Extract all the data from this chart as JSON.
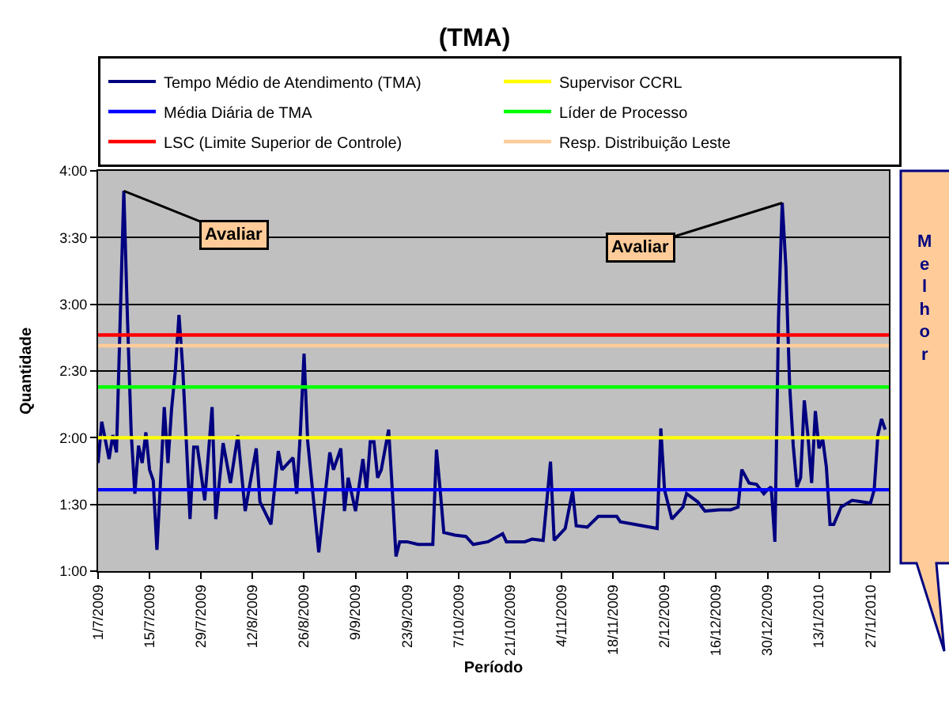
{
  "chart_data": {
    "type": "line",
    "title": "(TMA)",
    "xlabel": "Período",
    "ylabel": "Quantidade",
    "xlim": [
      "2009-07-01",
      "2010-02-01"
    ],
    "xticks": [
      {
        "value": "2009-07-01",
        "label": "1/7/2009"
      },
      {
        "value": "2009-07-15",
        "label": "15/7/2009"
      },
      {
        "value": "2009-07-29",
        "label": "29/7/2009"
      },
      {
        "value": "2009-08-12",
        "label": "12/8/2009"
      },
      {
        "value": "2009-08-26",
        "label": "26/8/2009"
      },
      {
        "value": "2009-09-09",
        "label": "9/9/2009"
      },
      {
        "value": "2009-09-23",
        "label": "23/9/2009"
      },
      {
        "value": "2009-10-07",
        "label": "7/10/2009"
      },
      {
        "value": "2009-10-21",
        "label": "21/10/2009"
      },
      {
        "value": "2009-11-04",
        "label": "4/11/2009"
      },
      {
        "value": "2009-11-18",
        "label": "18/11/2009"
      },
      {
        "value": "2009-12-02",
        "label": "2/12/2009"
      },
      {
        "value": "2009-12-16",
        "label": "16/12/2009"
      },
      {
        "value": "2009-12-30",
        "label": "30/12/2009"
      },
      {
        "value": "2010-01-13",
        "label": "13/1/2010"
      },
      {
        "value": "2010-01-27",
        "label": "27/1/2010"
      }
    ],
    "ylim": [
      1,
      4
    ],
    "yticks": [
      {
        "value": 1,
        "label": "1:00"
      },
      {
        "value": 1.5,
        "label": "1:30"
      },
      {
        "value": 2,
        "label": "2:00"
      },
      {
        "value": 2.5,
        "label": "2:30"
      },
      {
        "value": 3,
        "label": "3:00"
      },
      {
        "value": 3.5,
        "label": "3:30"
      },
      {
        "value": 4,
        "label": "4:00"
      }
    ],
    "grid": "y",
    "legend": "top",
    "series": [
      {
        "name": "Tempo Médio de Atendimento (TMA)",
        "color": "#000080",
        "x": [
          "2009-07-01",
          "2009-07-02",
          "2009-07-04",
          "2009-07-05",
          "2009-07-06",
          "2009-07-07",
          "2009-07-08",
          "2009-07-09",
          "2009-07-10",
          "2009-07-11",
          "2009-07-12",
          "2009-07-13",
          "2009-07-14",
          "2009-07-15",
          "2009-07-16",
          "2009-07-17",
          "2009-07-18",
          "2009-07-19",
          "2009-07-20",
          "2009-07-21",
          "2009-07-22",
          "2009-07-23",
          "2009-07-24",
          "2009-07-25",
          "2009-07-26",
          "2009-07-27",
          "2009-07-28",
          "2009-07-30",
          "2009-08-01",
          "2009-08-02",
          "2009-08-04",
          "2009-08-06",
          "2009-08-08",
          "2009-08-10",
          "2009-08-13",
          "2009-08-14",
          "2009-08-17",
          "2009-08-19",
          "2009-08-20",
          "2009-08-23",
          "2009-08-24",
          "2009-08-25",
          "2009-08-26",
          "2009-08-27",
          "2009-08-30",
          "2009-09-02",
          "2009-09-03",
          "2009-09-05",
          "2009-09-06",
          "2009-09-07",
          "2009-09-09",
          "2009-09-11",
          "2009-09-12",
          "2009-09-13",
          "2009-09-14",
          "2009-09-15",
          "2009-09-16",
          "2009-09-18",
          "2009-09-19",
          "2009-09-20",
          "2009-09-21",
          "2009-09-23",
          "2009-09-26",
          "2009-09-30",
          "2009-10-01",
          "2009-10-02",
          "2009-10-03",
          "2009-10-06",
          "2009-10-09",
          "2009-10-11",
          "2009-10-15",
          "2009-10-19",
          "2009-10-20",
          "2009-10-25",
          "2009-10-27",
          "2009-10-30",
          "2009-11-01",
          "2009-11-02",
          "2009-11-05",
          "2009-11-07",
          "2009-11-08",
          "2009-11-11",
          "2009-11-14",
          "2009-11-19",
          "2009-11-20",
          "2009-11-24",
          "2009-11-30",
          "2009-12-01",
          "2009-12-02",
          "2009-12-04",
          "2009-12-07",
          "2009-12-08",
          "2009-12-11",
          "2009-12-13",
          "2009-12-17",
          "2009-12-20",
          "2009-12-22",
          "2009-12-23",
          "2009-12-25",
          "2009-12-27",
          "2009-12-29",
          "2009-12-30",
          "2009-12-31",
          "2010-01-01",
          "2010-01-02",
          "2010-01-03",
          "2010-01-04",
          "2010-01-05",
          "2010-01-06",
          "2010-01-07",
          "2010-01-08",
          "2010-01-09",
          "2010-01-10",
          "2010-01-11",
          "2010-01-12",
          "2010-01-13",
          "2010-01-14",
          "2010-01-15",
          "2010-01-16",
          "2010-01-17",
          "2010-01-19",
          "2010-01-22",
          "2010-01-27",
          "2010-01-28",
          "2010-01-29",
          "2010-01-30",
          "2010-01-31"
        ],
        "values": [
          1.81,
          2.12,
          1.84,
          2.02,
          1.89,
          2.87,
          3.85,
          2.89,
          2.04,
          1.58,
          1.94,
          1.81,
          2.04,
          1.76,
          1.68,
          1.16,
          1.68,
          2.23,
          1.81,
          2.22,
          2.5,
          2.92,
          2.53,
          1.97,
          1.39,
          1.93,
          1.93,
          1.53,
          2.23,
          1.39,
          1.96,
          1.66,
          2.02,
          1.45,
          1.92,
          1.52,
          1.35,
          1.9,
          1.76,
          1.85,
          1.58,
          2.04,
          2.63,
          1.97,
          1.14,
          1.89,
          1.76,
          1.92,
          1.45,
          1.7,
          1.45,
          1.84,
          1.61,
          1.97,
          1.97,
          1.7,
          1.76,
          2.06,
          1.6,
          1.11,
          1.22,
          1.22,
          1.2,
          1.2,
          1.91,
          1.61,
          1.29,
          1.27,
          1.26,
          1.2,
          1.22,
          1.28,
          1.22,
          1.22,
          1.24,
          1.23,
          1.82,
          1.23,
          1.32,
          1.6,
          1.34,
          1.33,
          1.41,
          1.41,
          1.37,
          1.35,
          1.32,
          2.07,
          1.61,
          1.39,
          1.48,
          1.58,
          1.52,
          1.45,
          1.46,
          1.46,
          1.48,
          1.76,
          1.66,
          1.65,
          1.58,
          1.61,
          1.63,
          1.22,
          2.9,
          3.76,
          3.28,
          2.4,
          1.94,
          1.63,
          1.7,
          2.28,
          2.01,
          1.66,
          2.2,
          1.92,
          1.99,
          1.78,
          1.35,
          1.35,
          1.48,
          1.53,
          1.51,
          1.61,
          2.02,
          2.14,
          2.06
        ]
      },
      {
        "name": "Supervisor CCRL",
        "color": "#ffff00",
        "x": [
          "2009-07-01",
          "2010-02-01"
        ],
        "values": [
          2.0,
          2.0
        ]
      },
      {
        "name": "Média Diária de TMA",
        "color": "#0000ff",
        "x": [
          "2009-07-01",
          "2010-02-01"
        ],
        "values": [
          1.61,
          1.61
        ]
      },
      {
        "name": "Líder de Processo",
        "color": "#00ff00",
        "x": [
          "2009-07-01",
          "2010-02-01"
        ],
        "values": [
          2.38,
          2.38
        ]
      },
      {
        "name": "LSC (Limite Superior de Controle)",
        "color": "#ff0000",
        "x": [
          "2009-07-01",
          "2010-02-01"
        ],
        "values": [
          2.77,
          2.77
        ]
      },
      {
        "name": "Resp. Distribuição Leste",
        "color": "#ffcc99",
        "x": [
          "2009-07-01",
          "2010-02-01"
        ],
        "values": [
          2.69,
          2.69
        ]
      }
    ],
    "annotations": [
      {
        "text": "Avaliar",
        "x": "2009-07-08",
        "y": 3.85
      },
      {
        "text": "Avaliar",
        "x": "2010-01-03",
        "y": 3.76
      },
      "M\ne\nl\nh\no\nr"
    ]
  }
}
